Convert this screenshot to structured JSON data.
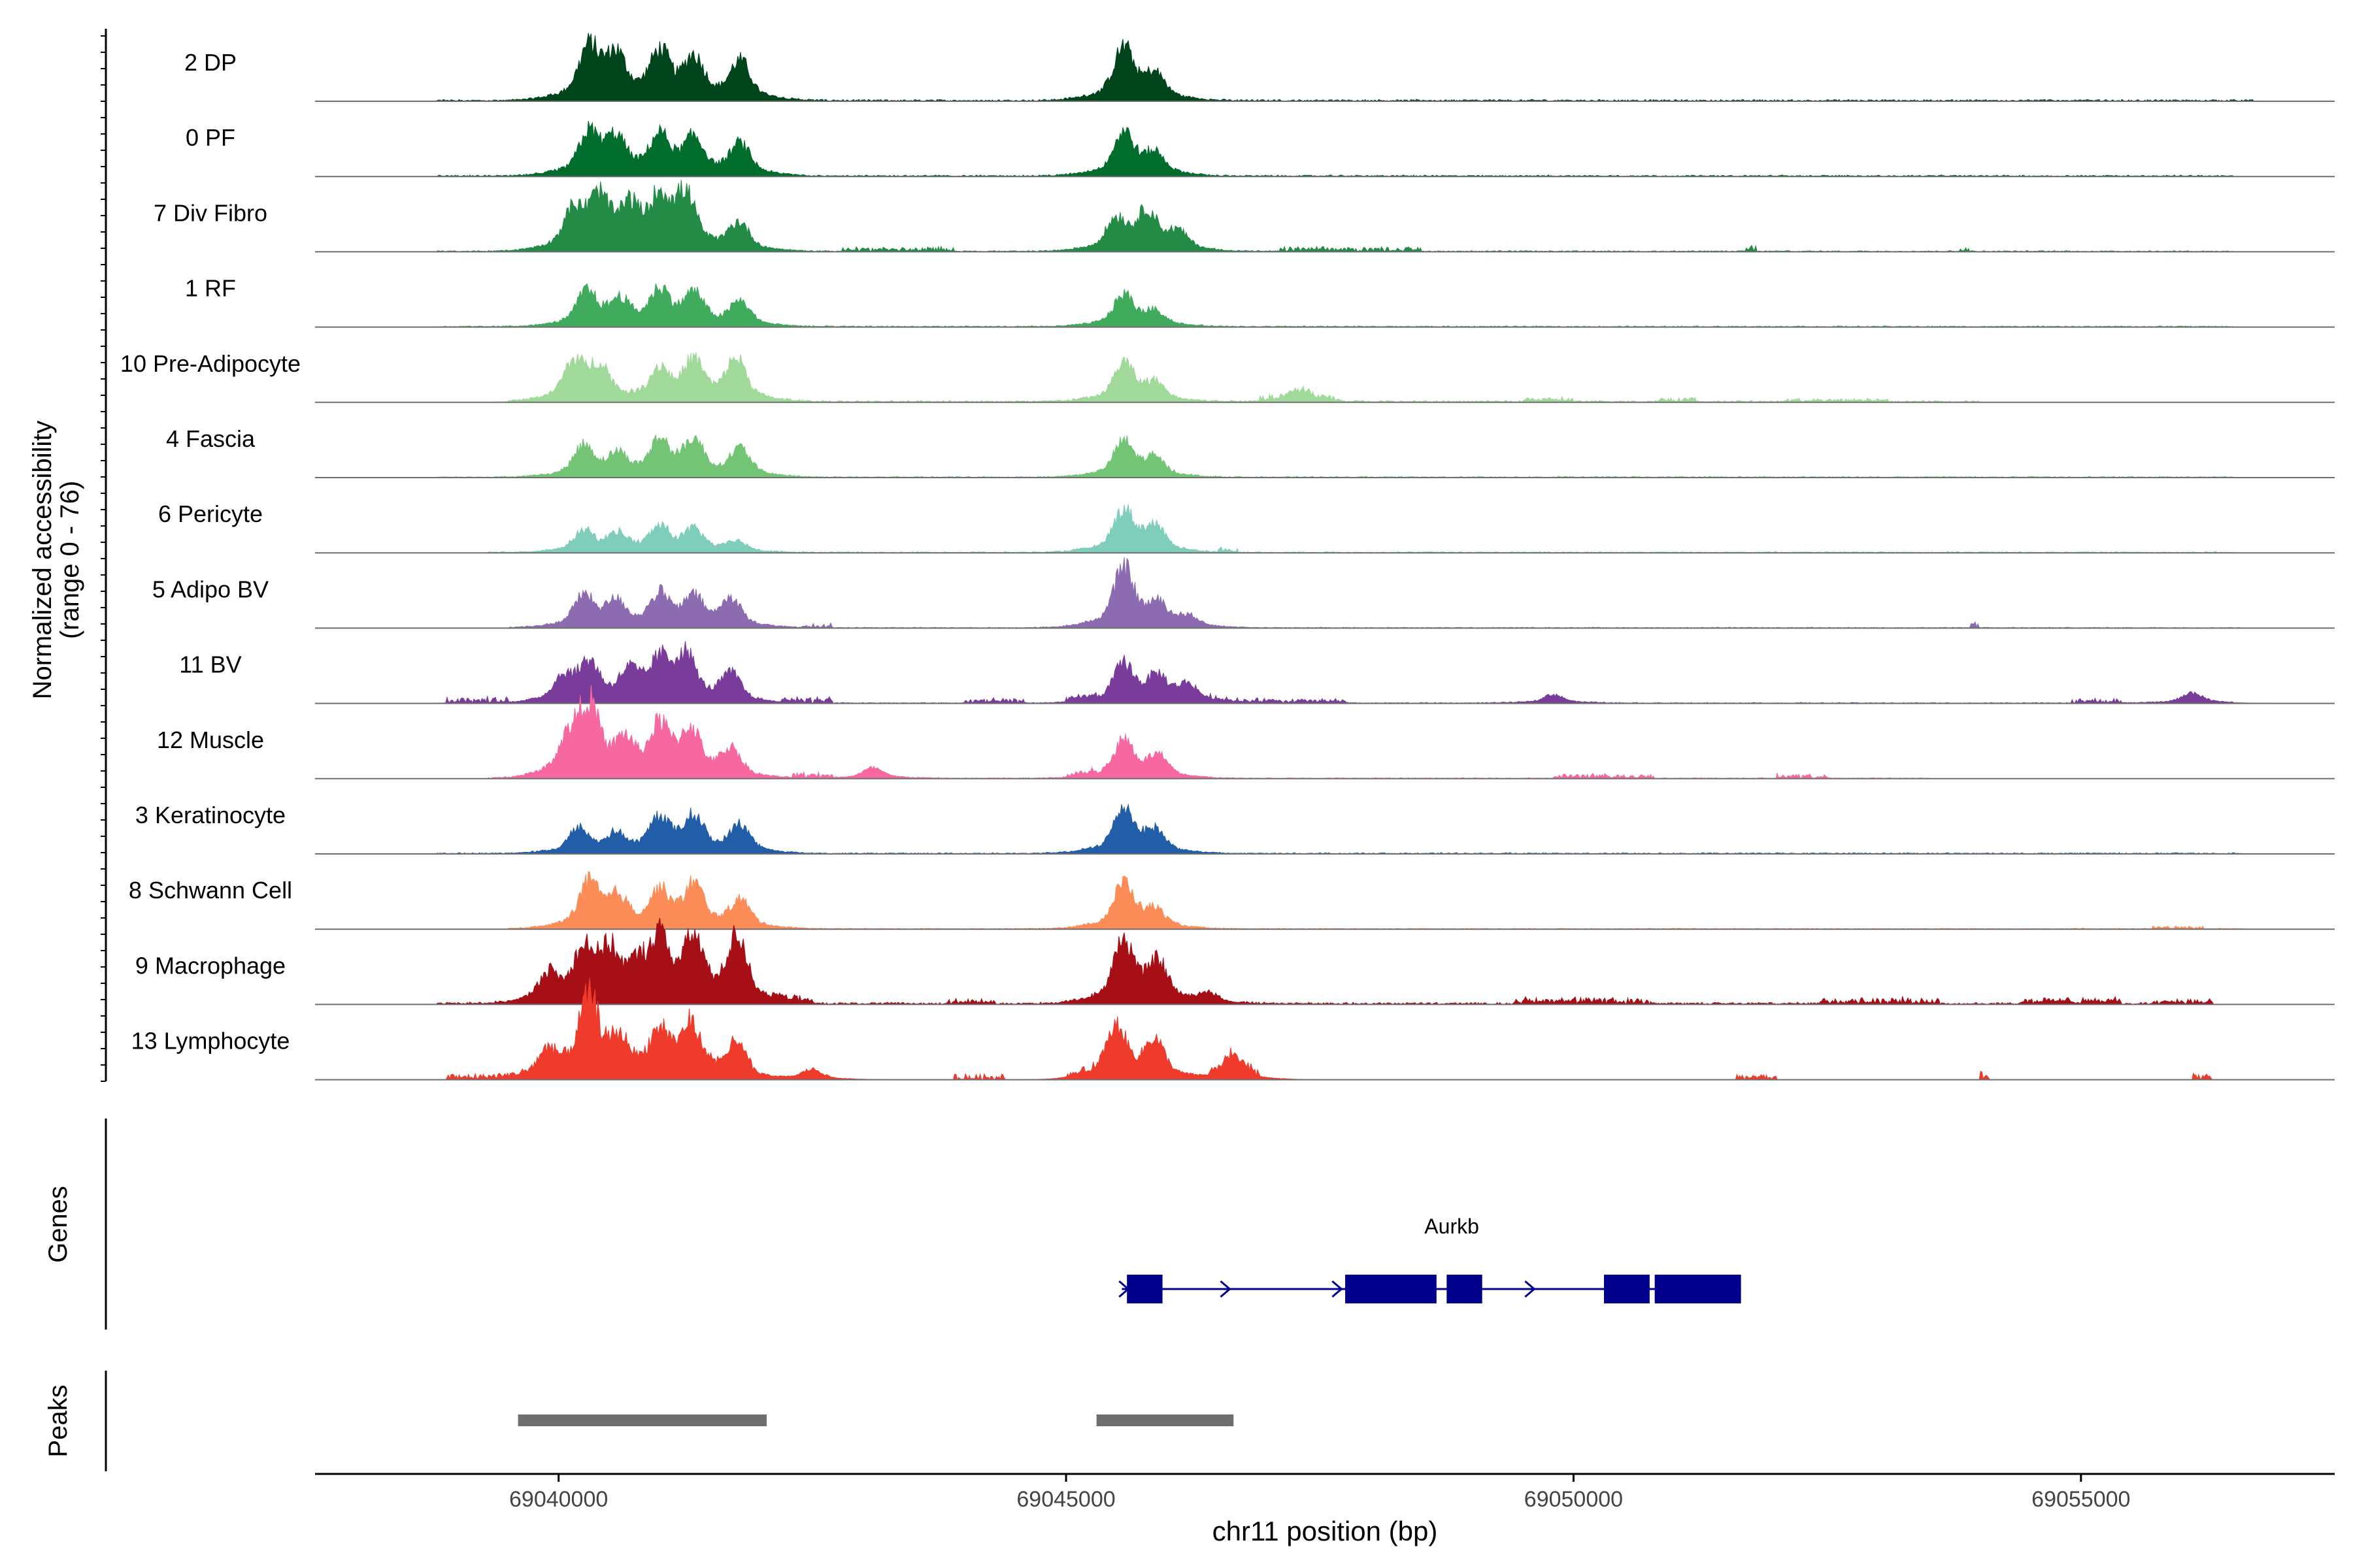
{
  "chart_data": {
    "type": "area",
    "title": "",
    "xlabel": "chr11 position (bp)",
    "ylabel": "Normalized accessibility",
    "ylabel_sub": "(range 0 - 76)",
    "xlim": [
      69037600,
      69057500
    ],
    "ylim": [
      0,
      76
    ],
    "xticks": [
      69040000,
      69045000,
      69050000,
      69055000
    ],
    "xtick_labels": [
      "69040000",
      "69045000",
      "69050000",
      "69055000"
    ],
    "grid": false,
    "legend": "none",
    "tracks": [
      {
        "name": "2 DP",
        "color": "#00441b",
        "peaks": [
          [
            69040300,
            30
          ],
          [
            69040560,
            24
          ],
          [
            69041000,
            26
          ],
          [
            69041330,
            23
          ],
          [
            69041790,
            22
          ],
          [
            69045570,
            30
          ],
          [
            69045870,
            14
          ]
        ],
        "noise": [
          [
            69038800,
            69056700,
            1.2
          ]
        ]
      },
      {
        "name": "0 PF",
        "color": "#006d2c",
        "peaks": [
          [
            69040300,
            24
          ],
          [
            69040560,
            20
          ],
          [
            69041000,
            22
          ],
          [
            69041330,
            20
          ],
          [
            69041790,
            18
          ],
          [
            69045570,
            25
          ],
          [
            69045870,
            12
          ]
        ],
        "noise": [
          [
            69038800,
            69056500,
            1.0
          ]
        ]
      },
      {
        "name": "7 Div Fibro",
        "color": "#238b45",
        "peaks": [
          [
            69040150,
            22
          ],
          [
            69040400,
            28
          ],
          [
            69040700,
            22
          ],
          [
            69041000,
            28
          ],
          [
            69041250,
            30
          ],
          [
            69041780,
            16
          ],
          [
            69045500,
            18
          ],
          [
            69045800,
            22
          ],
          [
            69046100,
            10
          ]
        ],
        "noise": [
          [
            69038800,
            69056500,
            0.8
          ],
          [
            69042800,
            69043900,
            3
          ],
          [
            69047100,
            69048500,
            3
          ],
          [
            69051700,
            69051800,
            4
          ],
          [
            69053800,
            69053900,
            3
          ]
        ]
      },
      {
        "name": "1 RF",
        "color": "#41ab5d",
        "peaks": [
          [
            69040280,
            20
          ],
          [
            69040600,
            14
          ],
          [
            69041000,
            20
          ],
          [
            69041330,
            18
          ],
          [
            69041790,
            14
          ],
          [
            69045570,
            18
          ],
          [
            69045870,
            8
          ]
        ],
        "noise": [
          [
            69038800,
            69056500,
            0.8
          ]
        ]
      },
      {
        "name": "10 Pre-Adipocyte",
        "color": "#a1d99b",
        "peaks": [
          [
            69040150,
            22
          ],
          [
            69040400,
            20
          ],
          [
            69041000,
            18
          ],
          [
            69041330,
            22
          ],
          [
            69041750,
            24
          ],
          [
            69045570,
            22
          ],
          [
            69045870,
            10
          ],
          [
            69047300,
            6
          ]
        ],
        "noise": [
          [
            69039500,
            69054000,
            1.2
          ],
          [
            69046900,
            69047700,
            4
          ],
          [
            69049500,
            69050000,
            3
          ],
          [
            69050800,
            69051200,
            3
          ],
          [
            69052100,
            69053100,
            2
          ]
        ]
      },
      {
        "name": "4 Fascia",
        "color": "#74c476",
        "peaks": [
          [
            69040250,
            18
          ],
          [
            69040580,
            12
          ],
          [
            69041000,
            20
          ],
          [
            69041330,
            20
          ],
          [
            69041790,
            16
          ],
          [
            69045570,
            20
          ],
          [
            69045870,
            10
          ]
        ],
        "noise": [
          [
            69038800,
            69056500,
            0.8
          ]
        ]
      },
      {
        "name": "6 Pericyte",
        "color": "#7fcdbb",
        "peaks": [
          [
            69040250,
            12
          ],
          [
            69040580,
            10
          ],
          [
            69041000,
            14
          ],
          [
            69041330,
            12
          ],
          [
            69041750,
            6
          ],
          [
            69045570,
            24
          ],
          [
            69045870,
            14
          ]
        ],
        "noise": [
          [
            69039300,
            69056500,
            0.8
          ],
          [
            69046500,
            69046700,
            3
          ]
        ]
      },
      {
        "name": "5 Adipo BV",
        "color": "#8c6bb1",
        "peaks": [
          [
            69040250,
            18
          ],
          [
            69040560,
            14
          ],
          [
            69041000,
            18
          ],
          [
            69041330,
            16
          ],
          [
            69041700,
            16
          ],
          [
            69045570,
            34
          ],
          [
            69045900,
            12
          ],
          [
            69046200,
            6
          ]
        ],
        "noise": [
          [
            69039500,
            69056600,
            0.6
          ],
          [
            69042400,
            69042700,
            3
          ],
          [
            69053900,
            69054000,
            4
          ]
        ]
      },
      {
        "name": "11 BV",
        "color": "#7a3c9b",
        "peaks": [
          [
            69040050,
            14
          ],
          [
            69040300,
            22
          ],
          [
            69040700,
            16
          ],
          [
            69041000,
            22
          ],
          [
            69041250,
            26
          ],
          [
            69041700,
            16
          ],
          [
            69045570,
            22
          ],
          [
            69045900,
            14
          ],
          [
            69046200,
            10
          ],
          [
            69049800,
            5
          ],
          [
            69056100,
            6
          ]
        ],
        "noise": [
          [
            69038800,
            69056500,
            0.6
          ],
          [
            69038900,
            69039500,
            4
          ],
          [
            69042200,
            69042700,
            4
          ],
          [
            69044000,
            69044600,
            3
          ],
          [
            69045000,
            69045300,
            4
          ],
          [
            69046400,
            69047800,
            3
          ],
          [
            69054900,
            69055400,
            3
          ]
        ]
      },
      {
        "name": "12 Muscle",
        "color": "#f768a1",
        "peaks": [
          [
            69040100,
            20
          ],
          [
            69040300,
            40
          ],
          [
            69040650,
            18
          ],
          [
            69041000,
            28
          ],
          [
            69041300,
            26
          ],
          [
            69041700,
            16
          ],
          [
            69045570,
            22
          ],
          [
            69045900,
            12
          ],
          [
            69043100,
            6
          ]
        ],
        "noise": [
          [
            69039300,
            69053500,
            0.6
          ],
          [
            69042300,
            69042700,
            4
          ],
          [
            69045000,
            69045300,
            4
          ],
          [
            69049800,
            69050800,
            3
          ],
          [
            69052000,
            69052500,
            3
          ]
        ]
      },
      {
        "name": "3 Keratinocyte",
        "color": "#225ea8",
        "peaks": [
          [
            69040200,
            14
          ],
          [
            69040560,
            10
          ],
          [
            69041000,
            20
          ],
          [
            69041330,
            20
          ],
          [
            69041790,
            16
          ],
          [
            69045570,
            26
          ],
          [
            69045870,
            12
          ]
        ],
        "noise": [
          [
            69038800,
            69056600,
            0.8
          ]
        ]
      },
      {
        "name": "8 Schwann Cell",
        "color": "#fc8d59",
        "peaks": [
          [
            69040300,
            26
          ],
          [
            69040580,
            16
          ],
          [
            69041000,
            20
          ],
          [
            69041330,
            24
          ],
          [
            69041790,
            16
          ],
          [
            69045570,
            26
          ],
          [
            69045870,
            10
          ]
        ],
        "noise": [
          [
            69039500,
            69056600,
            0.6
          ],
          [
            69055700,
            69056200,
            2
          ]
        ]
      },
      {
        "name": "9 Macrophage",
        "color": "#a50f15",
        "peaks": [
          [
            69039900,
            16
          ],
          [
            69040250,
            30
          ],
          [
            69040500,
            26
          ],
          [
            69040780,
            16
          ],
          [
            69041000,
            34
          ],
          [
            69041330,
            34
          ],
          [
            69041760,
            38
          ],
          [
            69045570,
            36
          ],
          [
            69045900,
            22
          ],
          [
            69046400,
            6
          ]
        ],
        "noise": [
          [
            69038800,
            69056300,
            1.4
          ],
          [
            69042100,
            69042500,
            4
          ],
          [
            69043800,
            69044300,
            3
          ],
          [
            69049400,
            69050800,
            4
          ],
          [
            69052400,
            69053600,
            4
          ],
          [
            69054400,
            69055400,
            4
          ],
          [
            69055700,
            69056300,
            3
          ]
        ]
      },
      {
        "name": "13 Lymphocyte",
        "color": "#ef3b2c",
        "peaks": [
          [
            69039900,
            14
          ],
          [
            69040300,
            44
          ],
          [
            69040600,
            18
          ],
          [
            69041000,
            24
          ],
          [
            69041300,
            28
          ],
          [
            69041750,
            18
          ],
          [
            69045500,
            30
          ],
          [
            69045870,
            22
          ],
          [
            69046650,
            12
          ],
          [
            69042500,
            6
          ]
        ],
        "noise": [
          [
            69038900,
            69041900,
            4
          ],
          [
            69043900,
            69044400,
            4
          ],
          [
            69045000,
            69045400,
            4
          ],
          [
            69046400,
            69046900,
            6
          ],
          [
            69051600,
            69052000,
            4
          ],
          [
            69054000,
            69054100,
            6
          ],
          [
            69056100,
            69056300,
            5
          ]
        ]
      }
    ],
    "genes_label": "Genes",
    "gene": {
      "name": "Aurkb",
      "color": "#00008b",
      "start": 69045550,
      "end": 69051650,
      "exons": [
        [
          69045600,
          69045950
        ],
        [
          69047750,
          69048650
        ],
        [
          69048750,
          69049100
        ],
        [
          69050300,
          69050750
        ],
        [
          69050800,
          69051650
        ]
      ],
      "arrows": [
        69045600,
        69046600,
        69047700,
        69049600
      ]
    },
    "peaks_label": "Peaks",
    "peak_regions": [
      [
        69039600,
        69042050
      ],
      [
        69045300,
        69046650
      ]
    ],
    "peak_color": "#6e6e6e"
  }
}
